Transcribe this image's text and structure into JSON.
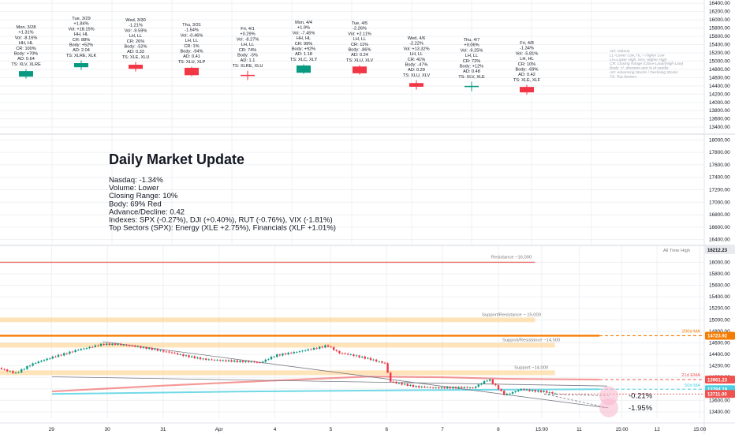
{
  "daily_panel": {
    "candles": [
      {
        "label_lines": [
          "Mon, 3/28",
          "+1.31%",
          "Vol: -8.16%",
          "HH, HL",
          "CR: 100%",
          "Body: +70%",
          "AD: 0.64",
          "TS: XLV, XLRE"
        ],
        "dir": "up",
        "body_pct": 70
      },
      {
        "label_lines": [
          "Tue, 3/29",
          "+1.84%",
          "Vol: +18.15%",
          "HH, HL",
          "CR: 88%",
          "Body: +52%",
          "AD: 2.04",
          "TS: XLRE, XLK"
        ],
        "dir": "up",
        "body_pct": 52
      },
      {
        "label_lines": [
          "Wed, 3/30",
          "-1.21%",
          "Vol: -9.59%",
          "LH, LL",
          "CR: 26%",
          "Body: -52%",
          "AD: 0.33",
          "TS: XLE, XLU"
        ],
        "dir": "down",
        "body_pct": 52
      },
      {
        "label_lines": [
          "Thu, 3/31",
          "-1.54%",
          "Vol: -0.46%",
          "LH, LL",
          "CR: 1%",
          "Body: -94%",
          "AD: 0.41",
          "TS: XLU, XLP"
        ],
        "dir": "down",
        "body_pct": 94
      },
      {
        "label_lines": [
          "Fri, 4/1",
          "+0.29%",
          "Vol: -8.27%",
          "LH, LL",
          "CR: 74%",
          "Body: -5%",
          "AD: 1.1",
          "TS: XLRE, XLU"
        ],
        "dir": "down",
        "body_pct": 5
      },
      {
        "label_lines": [
          "Mon, 4/4",
          "+1.9%",
          "Vol: -7.45%",
          "HH, HL",
          "CR: 99%",
          "Body: +92%",
          "AD: 1.18",
          "TS: XLC, XLY"
        ],
        "dir": "up",
        "body_pct": 92
      },
      {
        "label_lines": [
          "Tue, 4/5",
          "-2.26%",
          "Vol: +2.11%",
          "LH, LL",
          "CR: 11%",
          "Body: -86%",
          "AD: 0.24",
          "TS: XLU, XLV"
        ],
        "dir": "down",
        "body_pct": 86
      },
      {
        "label_lines": [
          "Wed, 4/6",
          "-2.22%",
          "Vol: +13.32%",
          "LH, LL",
          "CR: 41%",
          "Body: -47%",
          "AD: 0.29",
          "TS: XLU, XLV"
        ],
        "dir": "down",
        "body_pct": 47
      },
      {
        "label_lines": [
          "Thu, 4/7",
          "+0.06%",
          "Vol: -9.25%",
          "LH, LL",
          "CR: 72%",
          "Body: +12%",
          "AD: 0.48",
          "TS: XLV, XLE"
        ],
        "dir": "up",
        "body_pct": 12
      },
      {
        "label_lines": [
          "Fri, 4/8",
          "-1.34%",
          "Vol: -5.81%",
          "LH, HL",
          "CR: 10%",
          "Body: -69%",
          "AD: 0.42",
          "TS: XLE, XLF"
        ],
        "dir": "down",
        "body_pct": 69
      }
    ],
    "legend_lines": [
      "Vol: Volume",
      "LL=Lower Low, HL = Higher Low",
      "LH=Lower High, HH= Higher High",
      "CR: Closing Range (Close-Low)/(High-Low)",
      "Body: +/- direction and % of candle",
      "AD: Advancing Stocks / Declining Stocks",
      "TS: Top Sectors"
    ],
    "axis_ticks": [
      "16400.00",
      "16200.00",
      "16000.00",
      "15800.00",
      "15600.00",
      "15400.00",
      "15200.00",
      "15000.00",
      "14800.00",
      "14600.00",
      "14400.00",
      "14200.00",
      "14000.00",
      "13800.00",
      "13600.00",
      "13400.00"
    ],
    "axis_tick_values": [
      16400,
      16200,
      16000,
      15800,
      15600,
      15400,
      15200,
      15000,
      14800,
      14600,
      14400,
      14200,
      14000,
      13800,
      13600,
      13400
    ],
    "axis_range": [
      13250,
      16480
    ]
  },
  "update_panel": {
    "title": "Daily Market Update",
    "lines": [
      "Nasdaq: -1.34%",
      "Volume: Lower",
      "Closing Range: 10%",
      "Body: 69% Red",
      "Advance/Decline: 0.42",
      "Indexes: SPX (-0.27%), DJI (+0.40%), RUT (-0.76%), VIX (-1.81%)",
      "Top Sectors (SPX): Energy (XLE +2.75%), Financials (XLF +1.01%)"
    ],
    "axis_ticks": [
      "18000.00",
      "17800.00",
      "17600.00",
      "17400.00",
      "17200.00",
      "17000.00",
      "16800.00",
      "16600.00",
      "16400.00"
    ],
    "axis_tick_values": [
      18000,
      17800,
      17600,
      17400,
      17200,
      17000,
      16800,
      16600,
      16400
    ],
    "axis_range": [
      16320,
      18080
    ]
  },
  "main_chart": {
    "ticks": [
      "16000.00",
      "15800.00",
      "15600.00",
      "15400.00",
      "15200.00",
      "15000.00",
      "14800.00",
      "14600.00",
      "14400.00",
      "14200.00",
      "14000.00",
      "13800.00",
      "13600.00",
      "13400.00"
    ],
    "tick_values": [
      16000,
      15800,
      15600,
      15400,
      15200,
      15000,
      14800,
      14600,
      14400,
      14200,
      14000,
      13800,
      13600,
      13400
    ],
    "y_range": [
      13290,
      16280
    ],
    "x_labels": [
      "29",
      "30",
      "31",
      "Apr",
      "4",
      "5",
      "6",
      "7",
      "8",
      "15:00",
      "11",
      "15:00",
      "12",
      "15:00"
    ],
    "x_label_pos": [
      0.07,
      0.146,
      0.222,
      0.298,
      0.374,
      0.45,
      0.526,
      0.602,
      0.678,
      0.737,
      0.788,
      0.846,
      0.894,
      0.952
    ],
    "ath": {
      "value": 16212.23,
      "label": "All Time High",
      "tag": "16212.23"
    },
    "levels": [
      {
        "name": "resistance-16000",
        "value": 16000,
        "label": "Resistance ~16,000",
        "color": "#e57373",
        "kind": "line",
        "x_end": 0.728
      },
      {
        "name": "support-resistance-15000",
        "value": 15000,
        "label": "Support/Resistance ~ 15,000",
        "color": "#ffcc80",
        "kind": "band",
        "x_end": 0.728
      },
      {
        "name": "support-resistance-14500",
        "value": 14560,
        "label": "Support/Resistance ~14,500",
        "color": "#ffcc80",
        "kind": "band",
        "x_end": 0.755
      },
      {
        "name": "support-14000",
        "value": 14080,
        "label": "Support ~14,000",
        "color": "#ffcc80",
        "kind": "band",
        "x_end": 0.755
      }
    ],
    "ma200": {
      "label": "200d MA",
      "value": 14723.92,
      "tag": "14723.92",
      "color": "#f57c00"
    },
    "ema21": {
      "label": "21d EMA",
      "value": 13961.23,
      "tag": "13961.23",
      "color": "#ef5350"
    },
    "ma50": {
      "label": "50d MA",
      "value": 13794.19,
      "tag": "13794.19",
      "color": "#4dd0e1"
    },
    "last_price": {
      "value": 13711.0,
      "tag": "13711.00",
      "color": "#ef5350"
    },
    "projections": [
      {
        "label": "-0.21%",
        "end_value": 13680
      },
      {
        "label": "-1.95%",
        "end_value": 13470
      }
    ],
    "candles_hint": "Nasdaq 30-minute candles 3/28 – 4/8"
  },
  "colors": {
    "up": "#089981",
    "down": "#f23645",
    "grid": "#eef0f3",
    "text": "#131722"
  }
}
